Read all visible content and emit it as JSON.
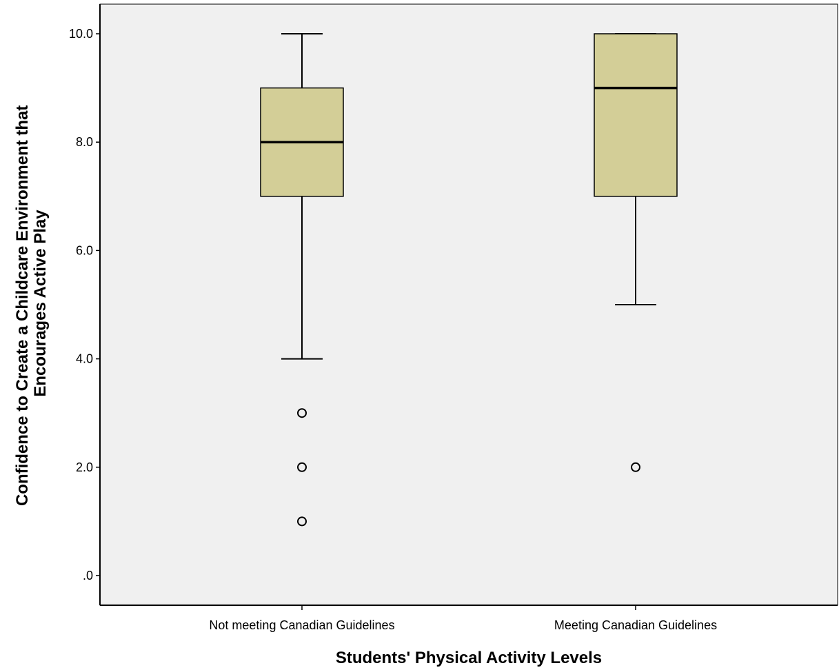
{
  "chart_data": {
    "type": "boxplot",
    "xlabel": "Students' Physical Activity Levels",
    "ylabel_lines": [
      "Confidence to Create a Childcare Environment that",
      "Encourages Active Play"
    ],
    "ylim": [
      -0.55,
      10.55
    ],
    "yticks": [
      0,
      2,
      4,
      6,
      8,
      10
    ],
    "ytick_labels": [
      ".0",
      "2.0",
      "4.0",
      "6.0",
      "8.0",
      "10.0"
    ],
    "categories": [
      "Not meeting Canadian Guidelines",
      "Meeting Canadian Guidelines"
    ],
    "boxes": [
      {
        "category": "Not meeting Canadian Guidelines",
        "whisker_low": 4,
        "q1": 7,
        "median": 8,
        "q3": 9,
        "whisker_high": 10,
        "outliers": [
          3,
          2,
          1
        ]
      },
      {
        "category": "Meeting Canadian Guidelines",
        "whisker_low": 5,
        "q1": 7,
        "median": 9,
        "q3": 10,
        "whisker_high": 10,
        "outliers": [
          2
        ]
      }
    ],
    "grid": false,
    "legend": "none"
  },
  "colors": {
    "plot_background": "#f0f0f0",
    "box_fill": "#d3ce97",
    "line": "#000000"
  }
}
